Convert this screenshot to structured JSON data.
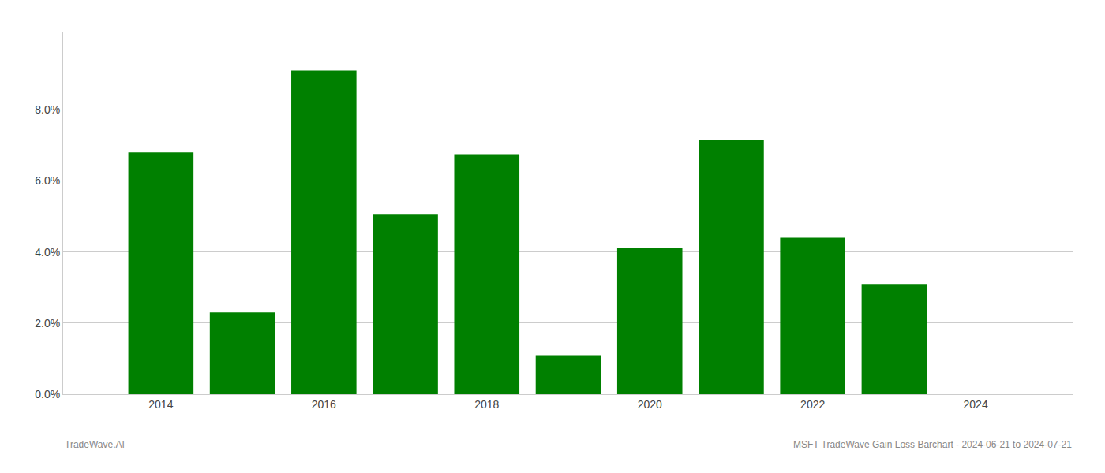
{
  "chart_data": {
    "type": "bar",
    "x": [
      2014,
      2015,
      2016,
      2017,
      2018,
      2019,
      2020,
      2021,
      2022,
      2023
    ],
    "values": [
      0.068,
      0.023,
      0.091,
      0.0505,
      0.0675,
      0.011,
      0.041,
      0.0715,
      0.044,
      0.031
    ],
    "color": "#008000",
    "xlim": [
      2012.8,
      2025.2
    ],
    "xticks": [
      2014,
      2016,
      2018,
      2020,
      2022,
      2024
    ],
    "ylim": [
      0,
      0.102
    ],
    "yticks": [
      {
        "value": 0.0,
        "label": "0.0%"
      },
      {
        "value": 0.02,
        "label": "2.0%"
      },
      {
        "value": 0.04,
        "label": "4.0%"
      },
      {
        "value": 0.06,
        "label": "6.0%"
      },
      {
        "value": 0.08,
        "label": "8.0%"
      }
    ],
    "grid": true,
    "annotations": [
      "TradeWave.AI",
      "MSFT TradeWave Gain Loss Barchart - 2024-06-21 to 2024-07-21"
    ]
  }
}
